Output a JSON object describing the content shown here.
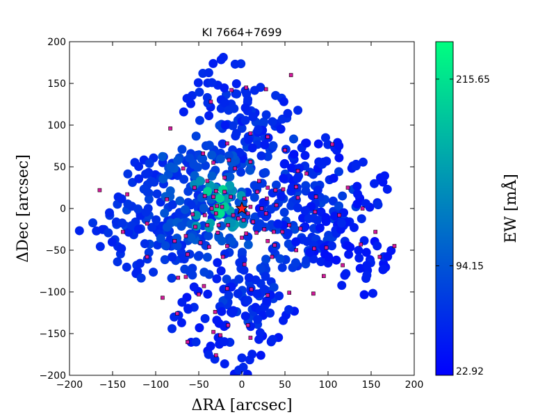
{
  "chart_data": {
    "type": "scatter",
    "title": "KI 7664+7699",
    "xlabel": "ΔRA [arcsec]",
    "ylabel": "ΔDec [arcsec]",
    "xlim": [
      -200,
      200
    ],
    "ylim": [
      -200,
      200
    ],
    "xticks": [
      -200,
      -150,
      -100,
      -50,
      0,
      50,
      100,
      150,
      200
    ],
    "yticks": [
      -200,
      -150,
      -100,
      -50,
      0,
      50,
      100,
      150,
      200
    ],
    "xtick_labels": [
      "−200",
      "−150",
      "−100",
      "−50",
      "0",
      "50",
      "100",
      "150",
      "200"
    ],
    "ytick_labels": [
      "−200",
      "−150",
      "−100",
      "−50",
      "0",
      "50",
      "100",
      "150",
      "200"
    ],
    "colorbar": {
      "label": "EW [mÅ]",
      "min": 22.92,
      "max": 240,
      "ticks": [
        22.92,
        94.15,
        215.65
      ],
      "tick_labels": [
        "22.92",
        "94.15",
        "215.65"
      ],
      "colors": [
        "#0000ff",
        "#00ff80"
      ]
    },
    "center_marker": {
      "x": 0,
      "y": 0,
      "marker": "star",
      "color": "#ff2020"
    },
    "sightline_marker_color": "#d4189c",
    "sightlines": [
      {
        "x": 57,
        "y": 160
      },
      {
        "x": 5,
        "y": 145
      },
      {
        "x": 28,
        "y": 143
      },
      {
        "x": -12,
        "y": 142
      },
      {
        "x": -36,
        "y": 128
      },
      {
        "x": 10,
        "y": 90
      },
      {
        "x": 30,
        "y": 86
      },
      {
        "x": -17,
        "y": 78
      },
      {
        "x": -83,
        "y": 96
      },
      {
        "x": 50,
        "y": 70
      },
      {
        "x": 105,
        "y": 77
      },
      {
        "x": -45,
        "y": 66
      },
      {
        "x": -15,
        "y": 58
      },
      {
        "x": 10,
        "y": 56
      },
      {
        "x": -33,
        "y": 55
      },
      {
        "x": -68,
        "y": 48
      },
      {
        "x": -8,
        "y": 48
      },
      {
        "x": 65,
        "y": 45
      },
      {
        "x": 75,
        "y": 42
      },
      {
        "x": -20,
        "y": 37
      },
      {
        "x": -40,
        "y": 33
      },
      {
        "x": 20,
        "y": 33
      },
      {
        "x": 63,
        "y": 26
      },
      {
        "x": 30,
        "y": 25
      },
      {
        "x": -55,
        "y": 25
      },
      {
        "x": -30,
        "y": 21
      },
      {
        "x": 48,
        "y": 23
      },
      {
        "x": -20,
        "y": 20
      },
      {
        "x": 39,
        "y": 22
      },
      {
        "x": 18,
        "y": 20
      },
      {
        "x": 123,
        "y": 25
      },
      {
        "x": -165,
        "y": 22
      },
      {
        "x": -133,
        "y": 17
      },
      {
        "x": -43,
        "y": 15
      },
      {
        "x": -33,
        "y": 14
      },
      {
        "x": -13,
        "y": 14
      },
      {
        "x": 3,
        "y": 12
      },
      {
        "x": 29,
        "y": 12
      },
      {
        "x": 65,
        "y": 13
      },
      {
        "x": 86,
        "y": 14
      },
      {
        "x": -87,
        "y": 11
      },
      {
        "x": 40,
        "y": 4
      },
      {
        "x": -29,
        "y": 3
      },
      {
        "x": -23,
        "y": 2
      },
      {
        "x": -35,
        "y": 0
      },
      {
        "x": 10,
        "y": 2
      },
      {
        "x": 23,
        "y": 0
      },
      {
        "x": 140,
        "y": 0
      },
      {
        "x": 85,
        "y": -4
      },
      {
        "x": 113,
        "y": -8
      },
      {
        "x": -57,
        "y": -7
      },
      {
        "x": -43,
        "y": -8
      },
      {
        "x": 28,
        "y": -6
      },
      {
        "x": -30,
        "y": -6
      },
      {
        "x": 7,
        "y": -6
      },
      {
        "x": -10,
        "y": -8
      },
      {
        "x": -4,
        "y": -12
      },
      {
        "x": 2,
        "y": -14
      },
      {
        "x": 13,
        "y": -16
      },
      {
        "x": -110,
        "y": -18
      },
      {
        "x": -40,
        "y": -20
      },
      {
        "x": -27,
        "y": -20
      },
      {
        "x": -16,
        "y": -20
      },
      {
        "x": 55,
        "y": -20
      },
      {
        "x": 68,
        "y": -24
      },
      {
        "x": -54,
        "y": -22
      },
      {
        "x": 26,
        "y": -25
      },
      {
        "x": 37,
        "y": -28
      },
      {
        "x": 17,
        "y": -29
      },
      {
        "x": 5,
        "y": -30
      },
      {
        "x": -28,
        "y": -29
      },
      {
        "x": -138,
        "y": -28
      },
      {
        "x": 47,
        "y": -28
      },
      {
        "x": 30,
        "y": -39
      },
      {
        "x": -65,
        "y": -33
      },
      {
        "x": 155,
        "y": -28
      },
      {
        "x": 0,
        "y": -35
      },
      {
        "x": 38,
        "y": -44
      },
      {
        "x": -78,
        "y": -39
      },
      {
        "x": -48,
        "y": -41
      },
      {
        "x": 138,
        "y": -43
      },
      {
        "x": -17,
        "y": -45
      },
      {
        "x": -38,
        "y": -46
      },
      {
        "x": 63,
        "y": -50
      },
      {
        "x": 84,
        "y": -48
      },
      {
        "x": 98,
        "y": -47
      },
      {
        "x": 177,
        "y": -45
      },
      {
        "x": -110,
        "y": -58
      },
      {
        "x": -63,
        "y": -55
      },
      {
        "x": -22,
        "y": -58
      },
      {
        "x": 35,
        "y": -58
      },
      {
        "x": 160,
        "y": -58
      },
      {
        "x": 117,
        "y": -68
      },
      {
        "x": 3,
        "y": -67
      },
      {
        "x": 95,
        "y": -81
      },
      {
        "x": -74,
        "y": -83
      },
      {
        "x": -65,
        "y": -82
      },
      {
        "x": -44,
        "y": -93
      },
      {
        "x": 11,
        "y": -97
      },
      {
        "x": -17,
        "y": -96
      },
      {
        "x": -50,
        "y": -103
      },
      {
        "x": 55,
        "y": -101
      },
      {
        "x": 83,
        "y": -102
      },
      {
        "x": -92,
        "y": -107
      },
      {
        "x": 30,
        "y": -104
      },
      {
        "x": -31,
        "y": -124
      },
      {
        "x": -75,
        "y": -126
      },
      {
        "x": -16,
        "y": -140
      },
      {
        "x": 7,
        "y": -140
      },
      {
        "x": -33,
        "y": -148
      },
      {
        "x": -25,
        "y": -152
      },
      {
        "x": -63,
        "y": -160
      },
      {
        "x": -30,
        "y": -176
      },
      {
        "x": 10,
        "y": -155
      }
    ],
    "field_regions": [
      {
        "cx": 0,
        "cy": 0,
        "w": 210,
        "h": 210,
        "angle": -38,
        "ew": 70
      },
      {
        "cx": -5,
        "cy": 120,
        "w": 120,
        "h": 90,
        "angle": -38,
        "ew": 55
      },
      {
        "cx": 95,
        "cy": 15,
        "w": 120,
        "h": 130,
        "angle": -38,
        "ew": 48
      },
      {
        "cx": -100,
        "cy": -10,
        "w": 120,
        "h": 140,
        "angle": -38,
        "ew": 60
      },
      {
        "cx": -10,
        "cy": -130,
        "w": 120,
        "h": 110,
        "angle": -38,
        "ew": 50
      },
      {
        "cx": 130,
        "cy": -60,
        "w": 90,
        "h": 70,
        "angle": -38,
        "ew": 45
      },
      {
        "cx": -40,
        "cy": 10,
        "w": 110,
        "h": 110,
        "angle": 0,
        "ew": 90
      },
      {
        "cx": -28,
        "cy": 5,
        "w": 60,
        "h": 60,
        "angle": 0,
        "ew": 150
      },
      {
        "cx": -28,
        "cy": 10,
        "w": 28,
        "h": 35,
        "angle": 0,
        "ew": 205
      }
    ]
  }
}
